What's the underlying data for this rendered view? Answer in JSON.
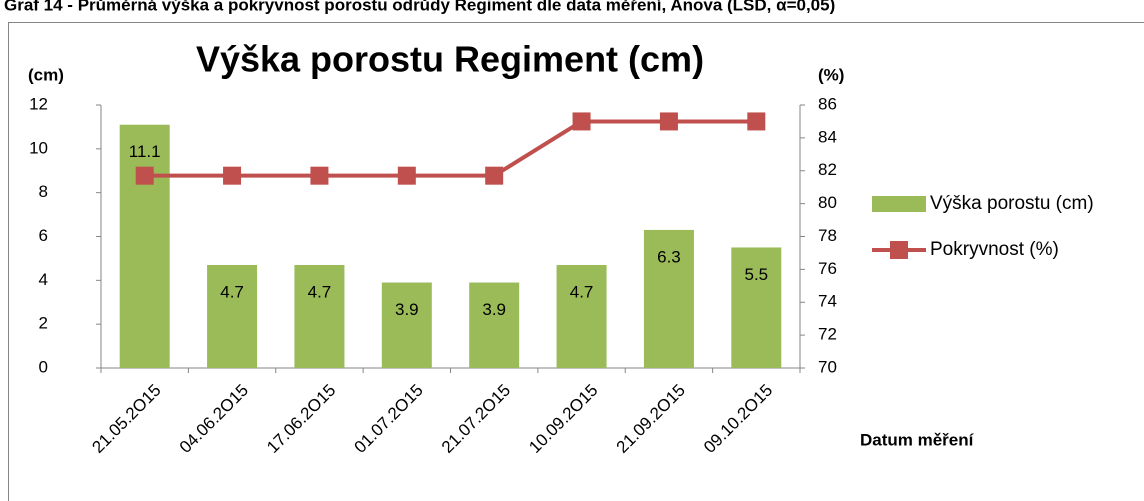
{
  "chart_data": {
    "type": "bar-line",
    "caption": "Graf 14 - Průměrná výška a pokryvnost porostu odrůdy Regiment dle data měření, Anova (LSD, α=0,05)",
    "title": "Výška porostu Regiment (cm)",
    "y_label": "(cm)",
    "y2_label": "(%)",
    "x_label": "Datum měření",
    "categories": [
      "21.05.2O15",
      "04.06.2O15",
      "17.06.2O15",
      "01.07.2O15",
      "21.07.2O15",
      "10.09.2O15",
      "21.09.2O15",
      "09.10.2O15"
    ],
    "series": [
      {
        "name": "Výška porostu (cm)",
        "type": "bar",
        "color": "#9bbb59",
        "values": [
          11.1,
          4.7,
          4.7,
          3.9,
          3.9,
          4.7,
          6.3,
          5.5
        ]
      },
      {
        "name": "Pokryvnost (%)",
        "type": "line",
        "axis": "y2",
        "color": "#c0504d",
        "values": [
          81.7,
          81.7,
          81.7,
          81.7,
          81.7,
          85,
          85,
          85
        ]
      }
    ],
    "ylim": [
      0,
      12
    ],
    "yticks": [
      0,
      2,
      4,
      6,
      8,
      10,
      12
    ],
    "y2lim": [
      70,
      86
    ],
    "y2ticks": [
      70,
      72,
      74,
      76,
      78,
      80,
      82,
      84,
      86
    ],
    "legend": "right"
  }
}
